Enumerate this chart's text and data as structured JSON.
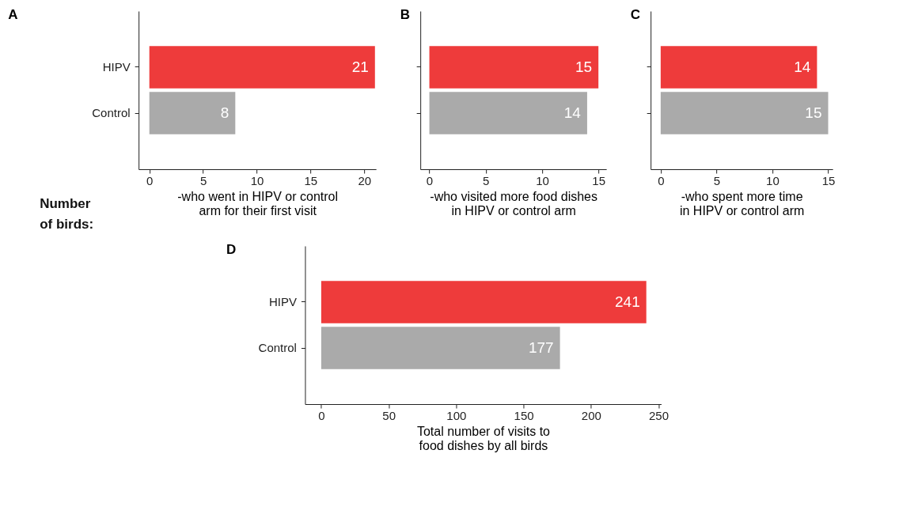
{
  "chart_data": [
    {
      "type": "bar",
      "orientation": "horizontal",
      "title": "A",
      "categories": [
        "HIPV",
        "Control"
      ],
      "values": [
        21,
        8
      ],
      "colors": [
        "#ee3b3b",
        "#aaaaaa"
      ],
      "data_labels": true,
      "xlim": [
        -1,
        21.1
      ],
      "xticks": [
        0,
        5,
        10,
        15,
        20
      ],
      "xlabel": "-who went in HIPV or control\narm for their first visit",
      "annotations": [
        "Number\nof birds:"
      ]
    },
    {
      "type": "bar",
      "orientation": "horizontal",
      "title": "B",
      "categories": [
        null,
        null
      ],
      "values": [
        15,
        14
      ],
      "colors": [
        "#ee3b3b",
        "#aaaaaa"
      ],
      "data_labels": true,
      "xlim": [
        -0.8,
        15.7
      ],
      "xticks": [
        0,
        5,
        10,
        15
      ],
      "xlabel": "-who visited more food dishes\nin HIPV or control arm",
      "tick_labels": "x"
    },
    {
      "type": "bar",
      "orientation": "horizontal",
      "title": "C",
      "categories": [
        null,
        null
      ],
      "values": [
        14,
        15
      ],
      "colors": [
        "#ee3b3b",
        "#aaaaaa"
      ],
      "data_labels": true,
      "xlim": [
        -0.9,
        15.4
      ],
      "xticks": [
        0,
        5,
        10,
        15
      ],
      "xlabel": "-who spent more time\nin HIPV or control arm",
      "tick_labels": "x"
    },
    {
      "type": "bar",
      "orientation": "horizontal",
      "title": "D",
      "categories": [
        "HIPV",
        "Control"
      ],
      "values": [
        241,
        177
      ],
      "colors": [
        "#ee3b3b",
        "#aaaaaa"
      ],
      "data_labels": true,
      "xlim": [
        -12,
        252
      ],
      "xticks": [
        0,
        50,
        100,
        150,
        200,
        250
      ],
      "xlabel": "Total number of visits to\nfood dishes by all birds"
    }
  ]
}
